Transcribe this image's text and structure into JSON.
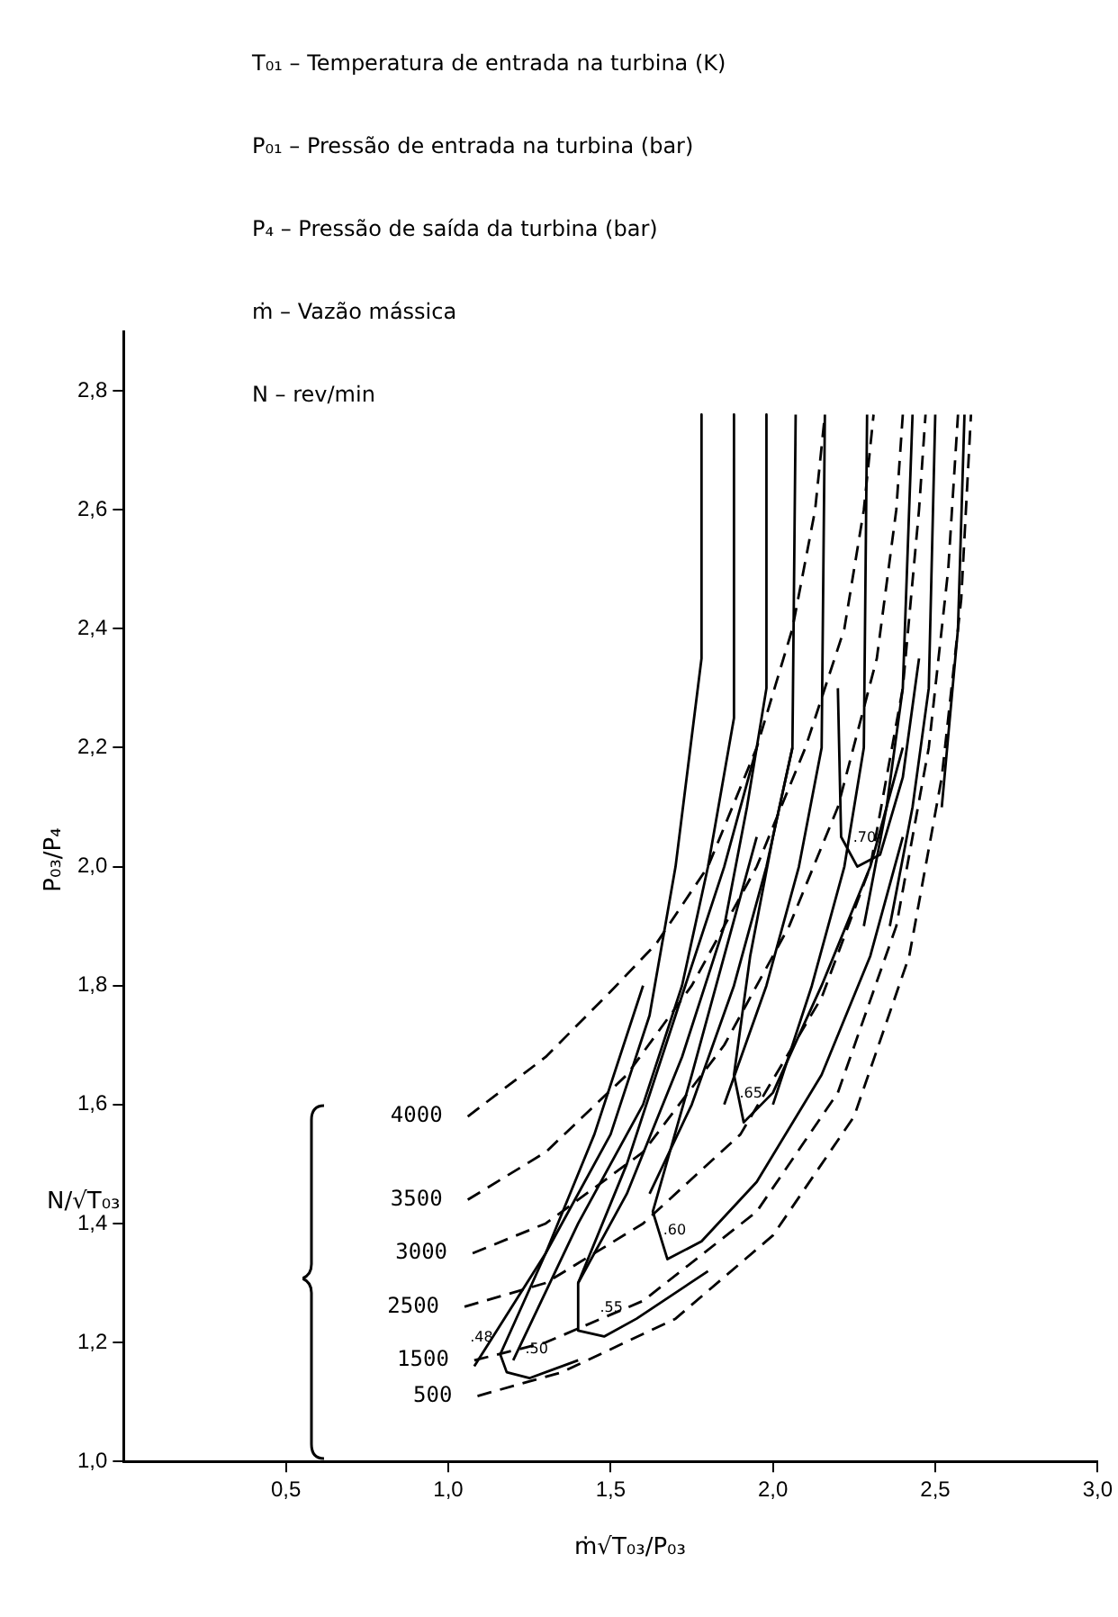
{
  "chart_data": {
    "type": "line",
    "xlabel": "ṁ√T₀₃/P₀₃",
    "ylabel": "P₀₃/P₄",
    "legend_title": "N/√T₀₃",
    "annotations": [
      "T₀₁ – Temperatura de entrada na turbina (K)",
      "P₀₁ – Pressão de entrada na turbina (bar)",
      "P₄ –  Pressão de saída da turbina (bar)",
      "ṁ – Vazão mássica",
      "N – rev/min",
      {
        "text": ".48",
        "x": 1.08,
        "y": 1.16
      },
      {
        "text": ".50",
        "x": 1.25,
        "y": 1.14
      },
      {
        "text": ".55",
        "x": 1.48,
        "y": 1.21
      },
      {
        "text": ".60",
        "x": 1.675,
        "y": 1.34
      },
      {
        "text": ".65",
        "x": 1.91,
        "y": 1.57
      },
      {
        "text": ".70",
        "x": 2.26,
        "y": 2.0
      }
    ],
    "xlim": [
      0,
      3
    ],
    "ylim": [
      1,
      2.9
    ],
    "xticks": [
      {
        "value": 0.5,
        "label": "0,5"
      },
      {
        "value": 1,
        "label": "1,0"
      },
      {
        "value": 1.5,
        "label": "1,5"
      },
      {
        "value": 2,
        "label": "2,0"
      },
      {
        "value": 2.5,
        "label": "2,5"
      },
      {
        "value": 3,
        "label": "3,0"
      }
    ],
    "yticks": [
      {
        "value": 1,
        "label": "1,0"
      },
      {
        "value": 1.2,
        "label": "1,2"
      },
      {
        "value": 1.4,
        "label": "1,4"
      },
      {
        "value": 1.6,
        "label": "1,6"
      },
      {
        "value": 1.8,
        "label": "1,8"
      },
      {
        "value": 2,
        "label": "2,0"
      },
      {
        "value": 2.2,
        "label": "2,2"
      },
      {
        "value": 2.4,
        "label": "2,4"
      },
      {
        "value": 2.6,
        "label": "2,6"
      },
      {
        "value": 2.8,
        "label": "2,8"
      }
    ],
    "grid": false,
    "marker": "none",
    "series": [
      {
        "name": "4000",
        "color": "#000000",
        "line_style": "dashed",
        "x": [
          1.06,
          1.3,
          1.5,
          1.64,
          1.8,
          1.95,
          2.06,
          2.13,
          2.16
        ],
        "values": [
          1.58,
          1.68,
          1.79,
          1.87,
          2.0,
          2.2,
          2.4,
          2.6,
          2.76
        ]
      },
      {
        "name": "3500",
        "color": "#000000",
        "line_style": "dashed",
        "x": [
          1.06,
          1.3,
          1.55,
          1.75,
          1.95,
          2.1,
          2.22,
          2.28,
          2.31
        ],
        "values": [
          1.44,
          1.52,
          1.65,
          1.8,
          2.0,
          2.2,
          2.4,
          2.6,
          2.76
        ]
      },
      {
        "name": "3000",
        "color": "#000000",
        "line_style": "dashed",
        "x": [
          1.075,
          1.3,
          1.6,
          1.85,
          2.05,
          2.2,
          2.32,
          2.38,
          2.4
        ],
        "values": [
          1.35,
          1.4,
          1.52,
          1.7,
          1.9,
          2.1,
          2.35,
          2.6,
          2.76
        ]
      },
      {
        "name": "2500",
        "color": "#000000",
        "line_style": "dashed",
        "x": [
          1.05,
          1.3,
          1.6,
          1.9,
          2.15,
          2.3,
          2.4,
          2.45,
          2.47
        ],
        "values": [
          1.26,
          1.3,
          1.4,
          1.55,
          1.78,
          2.0,
          2.3,
          2.6,
          2.76
        ]
      },
      {
        "name": "1500",
        "color": "#000000",
        "line_style": "dashed",
        "x": [
          1.08,
          1.3,
          1.6,
          1.95,
          2.2,
          2.38,
          2.48,
          2.54,
          2.57
        ],
        "values": [
          1.17,
          1.2,
          1.27,
          1.42,
          1.62,
          1.9,
          2.2,
          2.5,
          2.76
        ]
      },
      {
        "name": "500",
        "color": "#000000",
        "line_style": "dashed",
        "x": [
          1.09,
          1.35,
          1.7,
          2.0,
          2.25,
          2.42,
          2.52,
          2.58,
          2.61
        ],
        "values": [
          1.11,
          1.15,
          1.24,
          1.38,
          1.58,
          1.85,
          2.15,
          2.45,
          2.76
        ]
      },
      {
        "color": "#000000",
        "line_style": "solid",
        "x": [
          1.78,
          1.78,
          1.7,
          1.62,
          1.5,
          1.3,
          1.08
        ],
        "values": [
          2.76,
          2.35,
          2.0,
          1.75,
          1.55,
          1.35,
          1.16
        ]
      },
      {
        "color": "#000000",
        "line_style": "solid",
        "x": [
          1.88,
          1.88,
          1.8,
          1.72,
          1.6,
          1.4,
          1.2
        ],
        "values": [
          2.76,
          2.25,
          2.0,
          1.8,
          1.6,
          1.4,
          1.17
        ]
      },
      {
        "color": "#000000",
        "line_style": "solid",
        "x": [
          1.98,
          1.98,
          1.92,
          1.85,
          1.72,
          1.55,
          1.4
        ],
        "values": [
          2.76,
          2.3,
          2.1,
          1.9,
          1.68,
          1.45,
          1.3
        ]
      },
      {
        "color": "#000000",
        "line_style": "solid",
        "x": [
          2.07,
          2.06,
          1.98,
          1.88,
          1.75,
          1.62
        ],
        "values": [
          2.76,
          2.2,
          2.0,
          1.8,
          1.6,
          1.45
        ]
      },
      {
        "color": "#000000",
        "line_style": "solid",
        "x": [
          2.16,
          2.15,
          2.08,
          1.98,
          1.85
        ],
        "values": [
          2.76,
          2.2,
          2.0,
          1.8,
          1.6
        ]
      },
      {
        "color": "#000000",
        "line_style": "solid",
        "x": [
          2.29,
          2.28,
          2.22,
          2.12,
          2.0
        ],
        "values": [
          2.76,
          2.2,
          2.0,
          1.8,
          1.6
        ]
      },
      {
        "color": "#000000",
        "line_style": "solid",
        "x": [
          2.43,
          2.4,
          2.35,
          2.28
        ],
        "values": [
          2.76,
          2.3,
          2.1,
          1.9
        ]
      },
      {
        "color": "#000000",
        "line_style": "solid",
        "x": [
          2.5,
          2.48,
          2.43,
          2.36
        ],
        "values": [
          2.76,
          2.3,
          2.1,
          1.9
        ]
      },
      {
        "color": "#000000",
        "line_style": "solid",
        "x": [
          2.59,
          2.57,
          2.52
        ],
        "values": [
          2.76,
          2.4,
          2.1
        ]
      },
      {
        "color": "#000000",
        "line_style": "solid",
        "x": [
          2.2,
          2.21,
          2.26,
          2.33,
          2.4,
          2.45
        ],
        "values": [
          2.3,
          2.05,
          2.0,
          2.02,
          2.15,
          2.35
        ]
      },
      {
        "color": "#000000",
        "line_style": "solid",
        "x": [
          2.06,
          2.0,
          1.93,
          1.88,
          1.91,
          2.0,
          2.15,
          2.3,
          2.4
        ],
        "values": [
          2.2,
          2.05,
          1.85,
          1.65,
          1.57,
          1.62,
          1.8,
          2.0,
          2.2
        ]
      },
      {
        "color": "#000000",
        "line_style": "solid",
        "x": [
          1.95,
          1.85,
          1.75,
          1.63,
          1.675,
          1.78,
          1.95,
          2.15,
          2.3,
          2.4
        ],
        "values": [
          2.05,
          1.85,
          1.65,
          1.42,
          1.34,
          1.37,
          1.47,
          1.65,
          1.85,
          2.05
        ]
      },
      {
        "color": "#000000",
        "line_style": "solid",
        "x": [
          1.95,
          1.85,
          1.7,
          1.55,
          1.4,
          1.4,
          1.48,
          1.58,
          1.8
        ],
        "values": [
          2.2,
          2.0,
          1.75,
          1.5,
          1.3,
          1.22,
          1.21,
          1.24,
          1.32
        ]
      },
      {
        "color": "#000000",
        "line_style": "solid",
        "x": [
          1.6,
          1.45,
          1.3,
          1.16,
          1.18,
          1.25,
          1.4
        ],
        "values": [
          1.8,
          1.55,
          1.35,
          1.18,
          1.15,
          1.14,
          1.17
        ]
      }
    ]
  }
}
